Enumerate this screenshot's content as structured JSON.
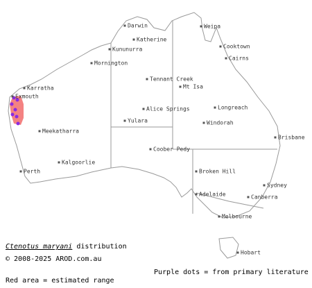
{
  "map": {
    "places": [
      "Darwin",
      "Weipa",
      "Katherine",
      "Kununurra",
      "Cooktown",
      "Cairns",
      "Mornington",
      "Tennant Creek",
      "Mt Isa",
      "Karratha",
      "Exmouth",
      "Alice Springs",
      "Longreach",
      "Yulara",
      "Windorah",
      "Meekatharra",
      "Brisbane",
      "Coober Pedy",
      "Kalgoorlie",
      "Perth",
      "Broken Hill",
      "Sydney",
      "Adelaide",
      "Canberra",
      "Melbourne",
      "Hobart"
    ],
    "species": "Ctenotus maryani",
    "title_suffix": "distribution",
    "copyright": "© 2008-2025 AROD.com.au",
    "legend_dots": "Purple dots = from primary literature",
    "legend_area": "Red area = estimated range"
  }
}
